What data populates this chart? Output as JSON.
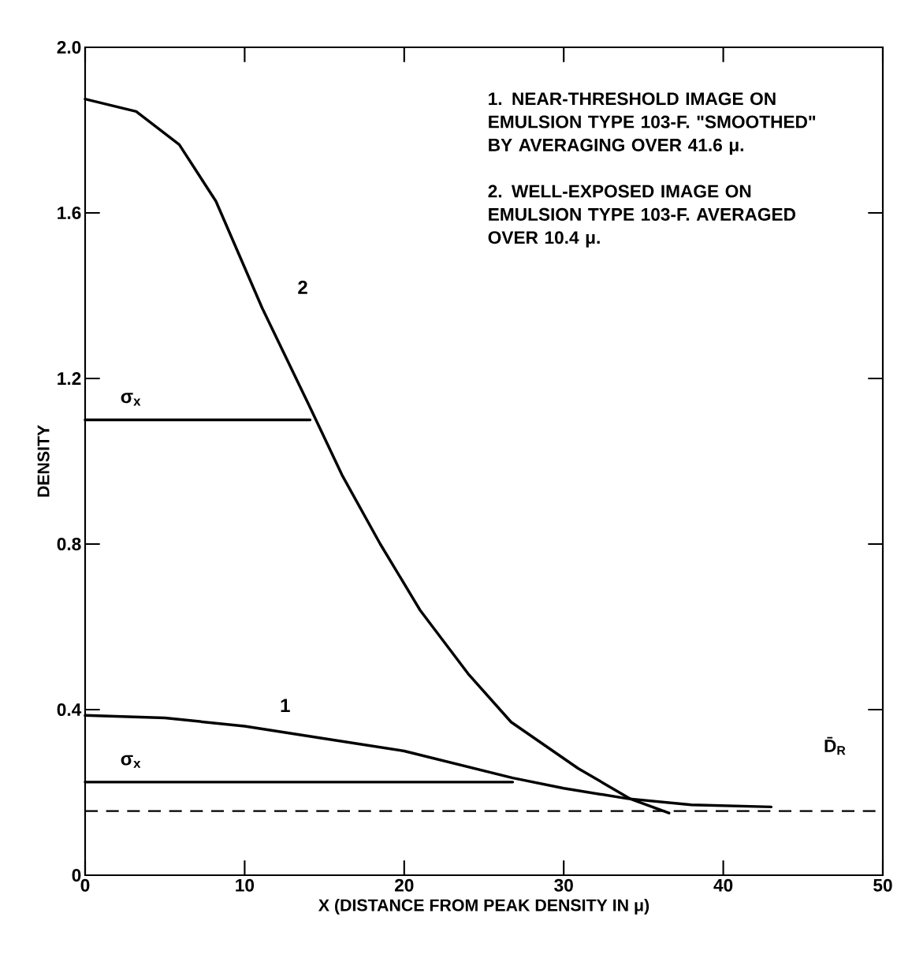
{
  "chart_data": {
    "type": "line",
    "xlabel": "X (DISTANCE FROM PEAK DENSITY IN μ)",
    "ylabel": "DENSITY",
    "xlim": [
      0,
      50
    ],
    "ylim": [
      0,
      2.0
    ],
    "xticks": [
      0,
      10,
      20,
      30,
      40,
      50
    ],
    "yticks": [
      0,
      0.4,
      0.8,
      1.2,
      1.6,
      {
        "value": 2.0,
        "label": "2.0"
      }
    ],
    "series": [
      {
        "color": "#000000",
        "x": [
          0,
          3.2,
          5.9,
          8.2,
          11.1,
          14.1,
          16.1,
          18.5,
          21,
          24,
          26.7,
          30.9,
          34.2,
          36.6
        ],
        "values": [
          1.875,
          1.845,
          1.765,
          1.628,
          1.37,
          1.13,
          0.967,
          0.8,
          0.64,
          0.487,
          0.37,
          0.258,
          0.184,
          0.15
        ]
      },
      {
        "color": "#000000",
        "x": [
          0,
          5,
          10,
          15,
          20,
          26.8,
          30,
          34,
          38,
          43
        ],
        "values": [
          0.386,
          0.38,
          0.36,
          0.33,
          0.3,
          0.235,
          0.21,
          0.185,
          0.17,
          0.165
        ]
      },
      {
        "color": "#000000",
        "x": [
          0,
          14.1
        ],
        "values": [
          1.1,
          1.1
        ]
      },
      {
        "color": "#000000",
        "x": [
          0,
          26.8
        ],
        "values": [
          0.225,
          0.225
        ]
      }
    ],
    "ref_lines": [
      {
        "axis": "y",
        "value": 0.155,
        "label": "D̄$_{R}$",
        "line_style": "dashed",
        "color": "#000000"
      }
    ],
    "annotations": [
      "1. NEAR-THRESHOLD IMAGE ON EMULSION TYPE 103-F. \"SMOOTHED\" BY AVERAGING OVER 41.6 μ.",
      "2. WELL-EXPOSED IMAGE ON EMULSION TYPE 103-F. AVERAGED OVER 10.4 μ.",
      {
        "text": "2",
        "x": 11.1,
        "y": 1.37
      },
      {
        "text": "1",
        "x": 10,
        "y": 0.36
      },
      {
        "text": "σ$_{x}$",
        "x": 0,
        "y": 1.1
      },
      {
        "text": "σ$_{x}$",
        "x": 0,
        "y": 0.225
      }
    ]
  }
}
